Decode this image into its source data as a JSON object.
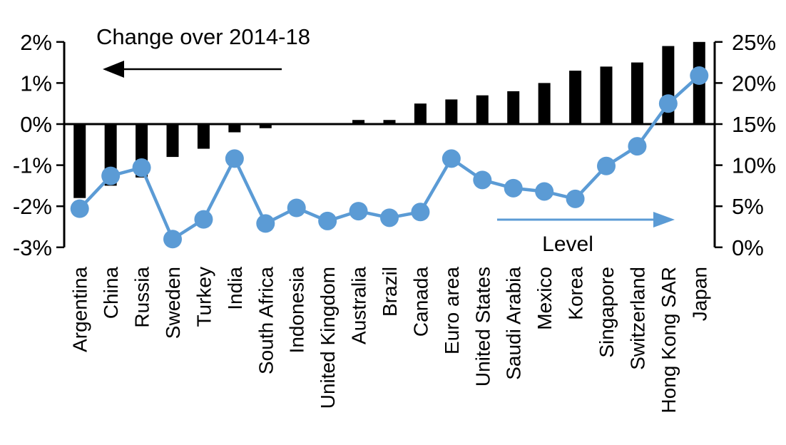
{
  "chart_data": {
    "type": "bar+line combo",
    "categories": [
      "Argentina",
      "China",
      "Russia",
      "Sweden",
      "Turkey",
      "India",
      "South Africa",
      "Indonesia",
      "United Kingdom",
      "Australia",
      "Brazil",
      "Canada",
      "Euro area",
      "United States",
      "Saudi Arabia",
      "Mexico",
      "Korea",
      "Singapore",
      "Switzerland",
      "Hong Kong SAR",
      "Japan"
    ],
    "series": [
      {
        "name": "Change over 2014-18",
        "type": "bar",
        "axis": "left",
        "values": [
          -1.8,
          -1.5,
          -1.3,
          -0.8,
          -0.6,
          -0.2,
          -0.1,
          0,
          0,
          0.1,
          0.1,
          0.5,
          0.6,
          0.7,
          0.8,
          1.0,
          1.3,
          1.4,
          1.5,
          1.9,
          2.0
        ]
      },
      {
        "name": "Level",
        "type": "line",
        "axis": "right",
        "values": [
          4.7,
          8.7,
          9.7,
          1.0,
          3.4,
          10.8,
          2.9,
          4.8,
          3.2,
          4.4,
          3.6,
          4.3,
          10.8,
          8.2,
          7.2,
          6.8,
          5.9,
          9.9,
          12.3,
          17.5,
          20.9
        ]
      }
    ],
    "left_axis": {
      "tick_labels": [
        "2%",
        "1%",
        "0%",
        "-1%",
        "-2%",
        "-3%"
      ],
      "tick_values": [
        2,
        1,
        0,
        -1,
        -2,
        -3
      ],
      "range": [
        -3,
        2
      ]
    },
    "right_axis": {
      "tick_labels": [
        "25%",
        "20%",
        "15%",
        "10%",
        "5%",
        "0%"
      ],
      "tick_values": [
        25,
        20,
        15,
        10,
        5,
        0
      ],
      "range": [
        0,
        25
      ]
    },
    "annotations": [
      {
        "id": "change",
        "label": "Change over 2014-18",
        "arrow": "left",
        "color": "#000000"
      },
      {
        "id": "level",
        "label": "Level",
        "arrow": "right",
        "color": "#5B9BD5"
      }
    ],
    "grid": false,
    "legend_position": "in-plot annotations with arrows",
    "xlabel": "",
    "ylabel_left": "",
    "ylabel_right": ""
  },
  "colors": {
    "bar": "#000000",
    "line": "#5B9BD5",
    "background": "#FFFFFF",
    "text": "#000000"
  }
}
